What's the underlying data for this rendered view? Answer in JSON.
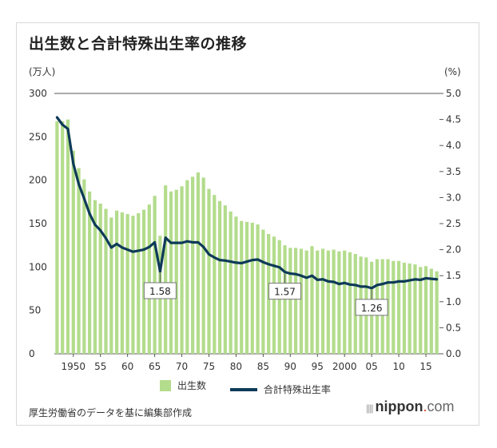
{
  "title": "出生数と合計特殊出生率の推移",
  "source": "厚生労働省のデータを基に編集部作成",
  "brand": {
    "prefix": "||||",
    "name": "nippon",
    "dot": ".",
    "suffix": "com"
  },
  "legend": {
    "births": "出生数",
    "tfr": "合計特殊出生率"
  },
  "colors": {
    "bar": "#b3dc8c",
    "line": "#0e3a58",
    "axis": "#333333",
    "grid": "#cccccc"
  },
  "chart_data": {
    "type": "bar+line",
    "left_axis_unit": "(万人)",
    "right_axis_unit": "(%)",
    "ylim_left": [
      0,
      300
    ],
    "ylim_right": [
      0.0,
      5.0
    ],
    "left_ticks": [
      "0",
      "50",
      "100",
      "150",
      "200",
      "250",
      "300"
    ],
    "right_ticks": [
      "0.0",
      "0.5",
      "1.0",
      "1.5",
      "2.0",
      "2.5",
      "3.0",
      "3.5",
      "4.0",
      "4.5",
      "5.0"
    ],
    "x_tick_labels": [
      "1950",
      "55",
      "60",
      "65",
      "70",
      "75",
      "80",
      "85",
      "90",
      "95",
      "2000",
      "05",
      "10",
      "15"
    ],
    "x_tick_years": [
      1950,
      1955,
      1960,
      1965,
      1970,
      1975,
      1980,
      1985,
      1990,
      1995,
      2000,
      2005,
      2010,
      2015
    ],
    "years": [
      1947,
      1948,
      1949,
      1950,
      1951,
      1952,
      1953,
      1954,
      1955,
      1956,
      1957,
      1958,
      1959,
      1960,
      1961,
      1962,
      1963,
      1964,
      1965,
      1966,
      1967,
      1968,
      1969,
      1970,
      1971,
      1972,
      1973,
      1974,
      1975,
      1976,
      1977,
      1978,
      1979,
      1980,
      1981,
      1982,
      1983,
      1984,
      1985,
      1986,
      1987,
      1988,
      1989,
      1990,
      1991,
      1992,
      1993,
      1994,
      1995,
      1996,
      1997,
      1998,
      1999,
      2000,
      2001,
      2002,
      2003,
      2004,
      2005,
      2006,
      2007,
      2008,
      2009,
      2010,
      2011,
      2012,
      2013,
      2014,
      2015,
      2016,
      2017
    ],
    "series": [
      {
        "name": "出生数",
        "values": [
          268,
          268,
          270,
          234,
          214,
          201,
          187,
          177,
          173,
          167,
          157,
          165,
          163,
          161,
          159,
          162,
          166,
          172,
          182,
          136,
          194,
          187,
          189,
          193,
          200,
          204,
          209,
          203,
          190,
          183,
          176,
          171,
          164,
          158,
          153,
          152,
          151,
          149,
          143,
          138,
          135,
          131,
          125,
          122,
          122,
          121,
          119,
          124,
          119,
          121,
          119,
          120,
          118,
          119,
          117,
          115,
          112,
          111,
          106,
          109,
          109,
          109,
          107,
          107,
          105,
          104,
          103,
          100,
          101,
          98,
          95
        ]
      },
      {
        "name": "合計特殊出生率",
        "values": [
          4.54,
          4.4,
          4.32,
          3.65,
          3.26,
          2.98,
          2.69,
          2.48,
          2.37,
          2.22,
          2.04,
          2.11,
          2.04,
          2.0,
          1.96,
          1.98,
          2.0,
          2.05,
          2.14,
          1.58,
          2.23,
          2.13,
          2.13,
          2.13,
          2.16,
          2.14,
          2.14,
          2.05,
          1.91,
          1.85,
          1.8,
          1.79,
          1.77,
          1.75,
          1.74,
          1.77,
          1.8,
          1.81,
          1.76,
          1.72,
          1.69,
          1.66,
          1.57,
          1.54,
          1.53,
          1.5,
          1.46,
          1.5,
          1.42,
          1.43,
          1.39,
          1.38,
          1.34,
          1.36,
          1.33,
          1.32,
          1.29,
          1.29,
          1.26,
          1.32,
          1.34,
          1.37,
          1.37,
          1.39,
          1.39,
          1.41,
          1.43,
          1.42,
          1.45,
          1.44,
          1.43
        ]
      }
    ],
    "annotations": [
      {
        "year": 1966,
        "label": "1.58"
      },
      {
        "year": 1989,
        "label": "1.57"
      },
      {
        "year": 2005,
        "label": "1.26"
      }
    ]
  }
}
